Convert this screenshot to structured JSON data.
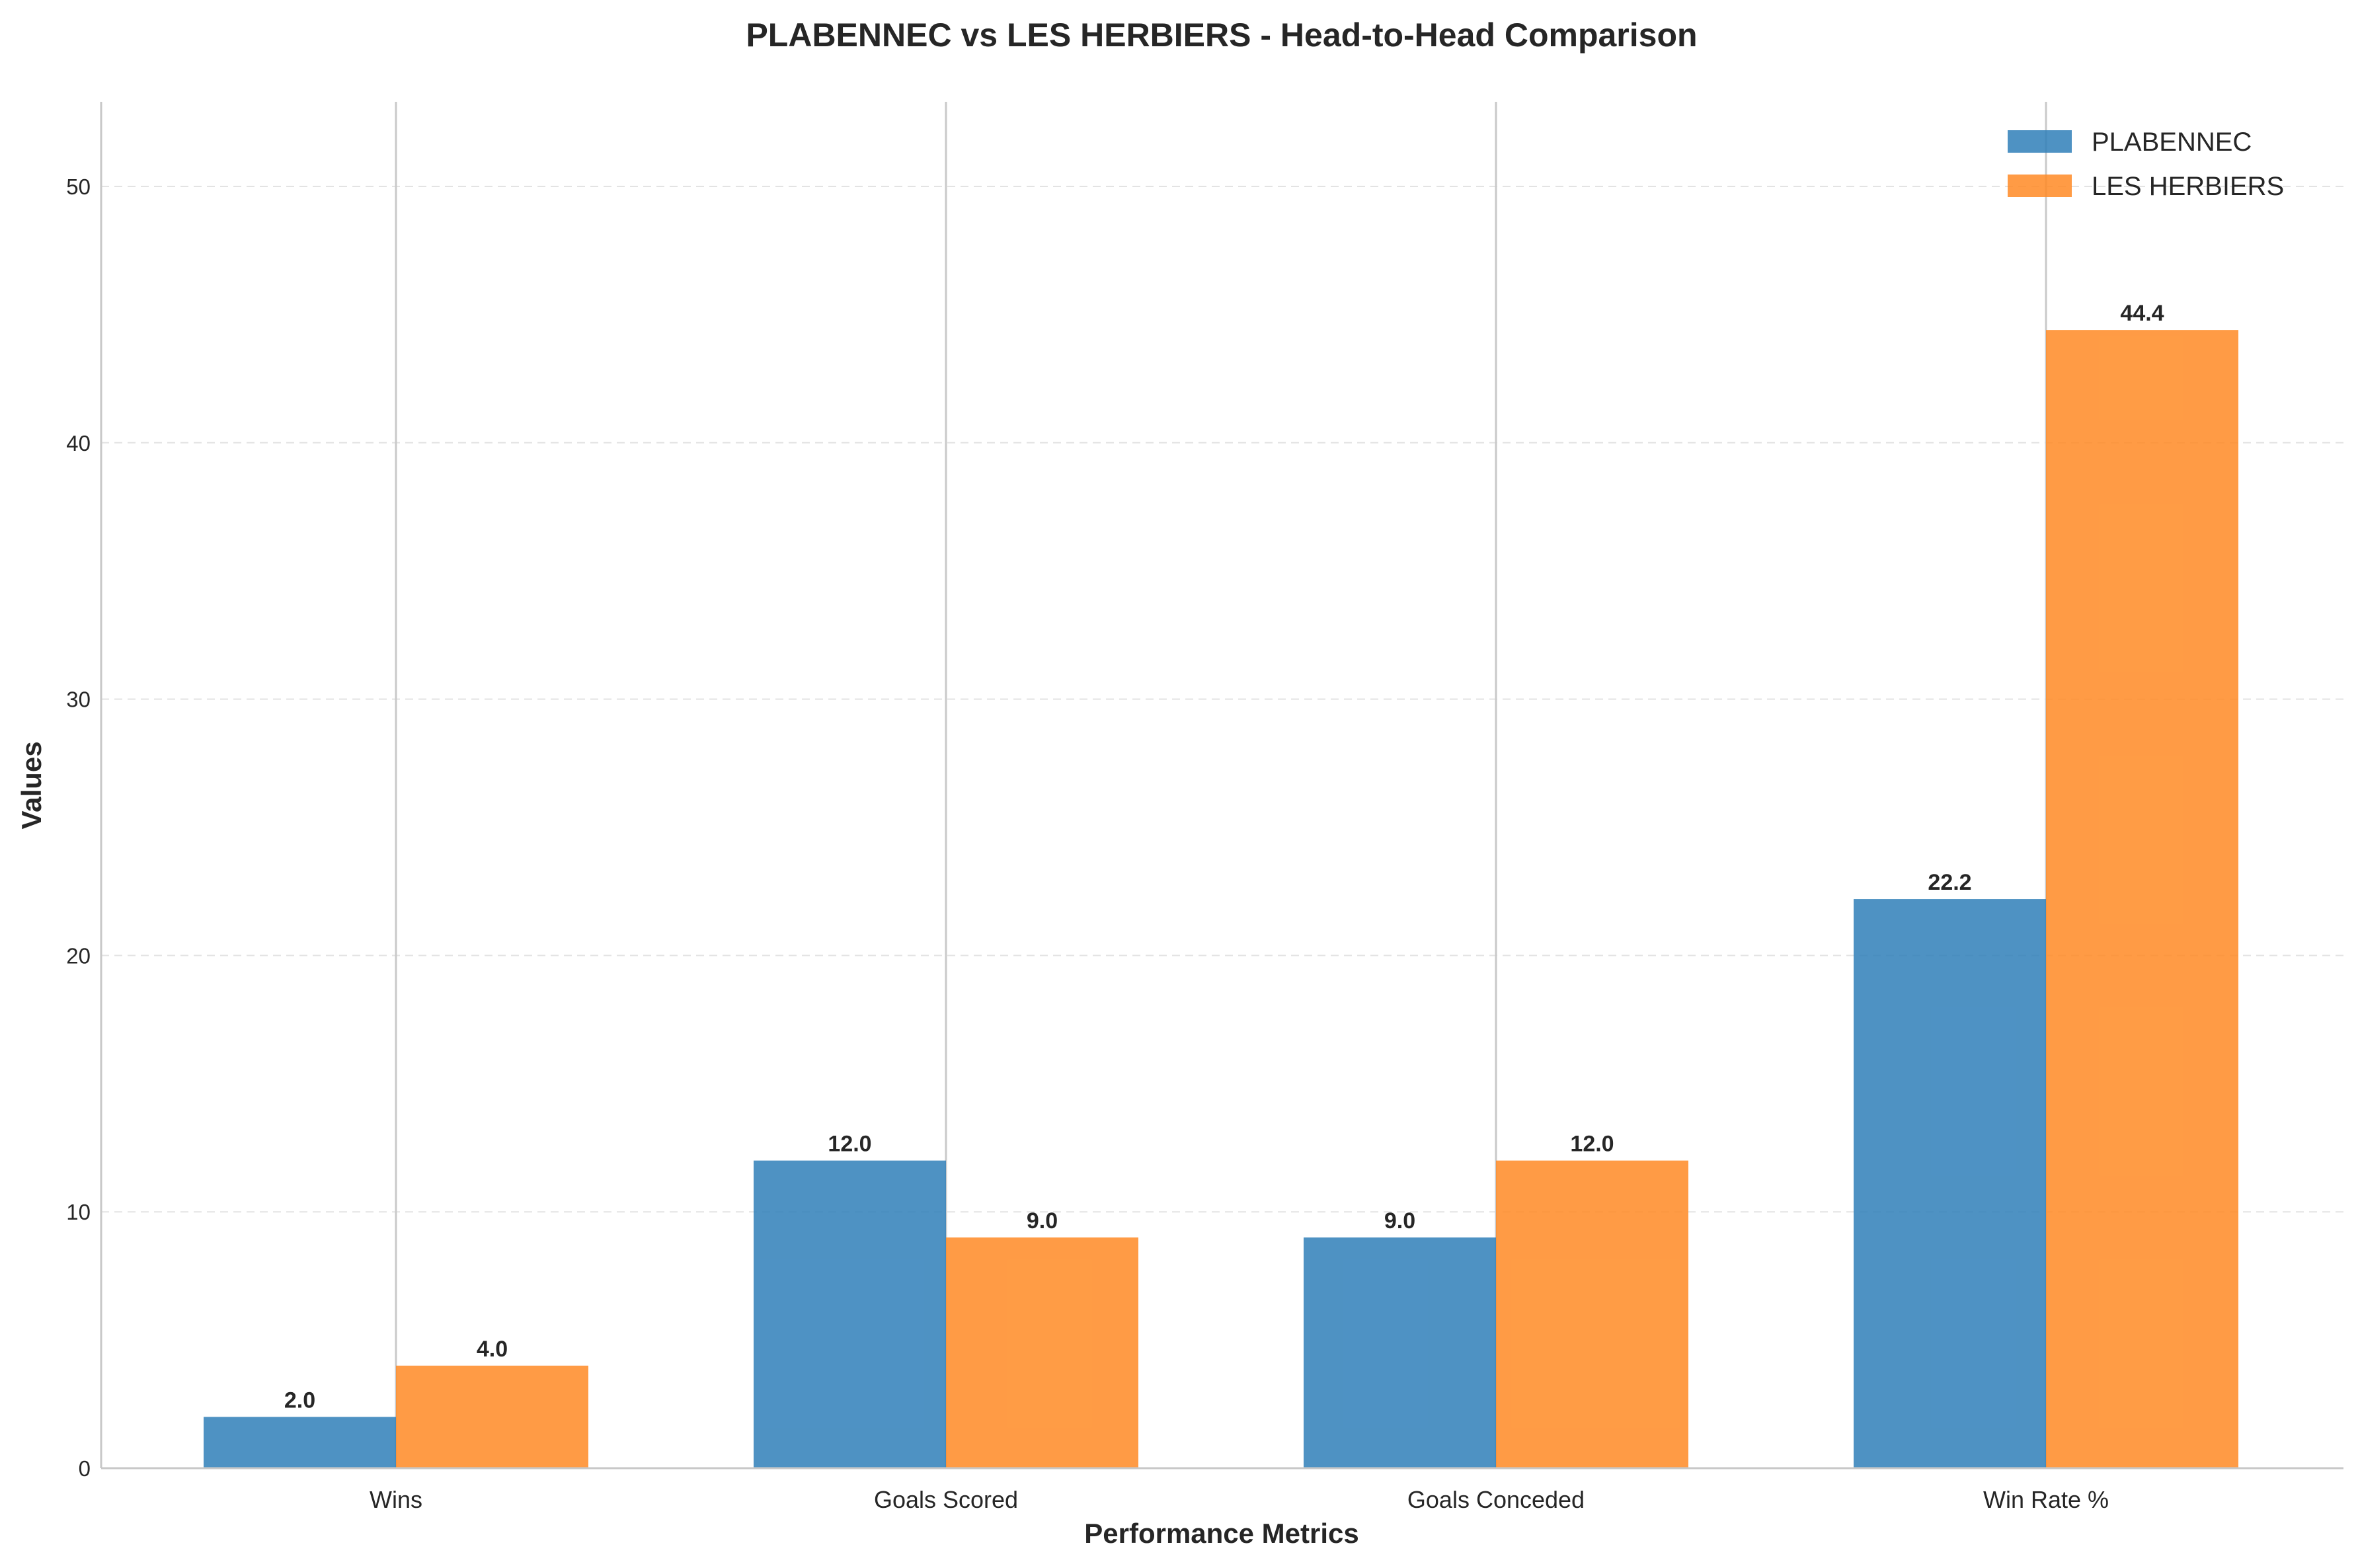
{
  "chart_data": {
    "type": "bar",
    "title": "PLABENNEC vs LES HERBIERS - Head-to-Head Comparison",
    "xlabel": "Performance Metrics",
    "ylabel": "Values",
    "categories": [
      "Wins",
      "Goals Scored",
      "Goals Conceded",
      "Win Rate %"
    ],
    "series": [
      {
        "name": "PLABENNEC",
        "color": "#2f7fb9",
        "values": [
          2.0,
          12.0,
          9.0,
          22.2
        ],
        "labels": [
          "2.0",
          "12.0",
          "9.0",
          "22.2"
        ]
      },
      {
        "name": "LES HERBIERS",
        "color": "#ff8a24",
        "values": [
          4.0,
          9.0,
          12.0,
          44.4
        ],
        "labels": [
          "4.0",
          "9.0",
          "12.0",
          "44.4"
        ]
      }
    ],
    "ylim": [
      0,
      53.3
    ],
    "yticks": [
      0,
      10,
      20,
      30,
      40,
      50
    ],
    "ytick_labels": [
      "0",
      "10",
      "20",
      "30",
      "40",
      "50"
    ],
    "grid": "y-dashed",
    "legend": "top-right"
  }
}
